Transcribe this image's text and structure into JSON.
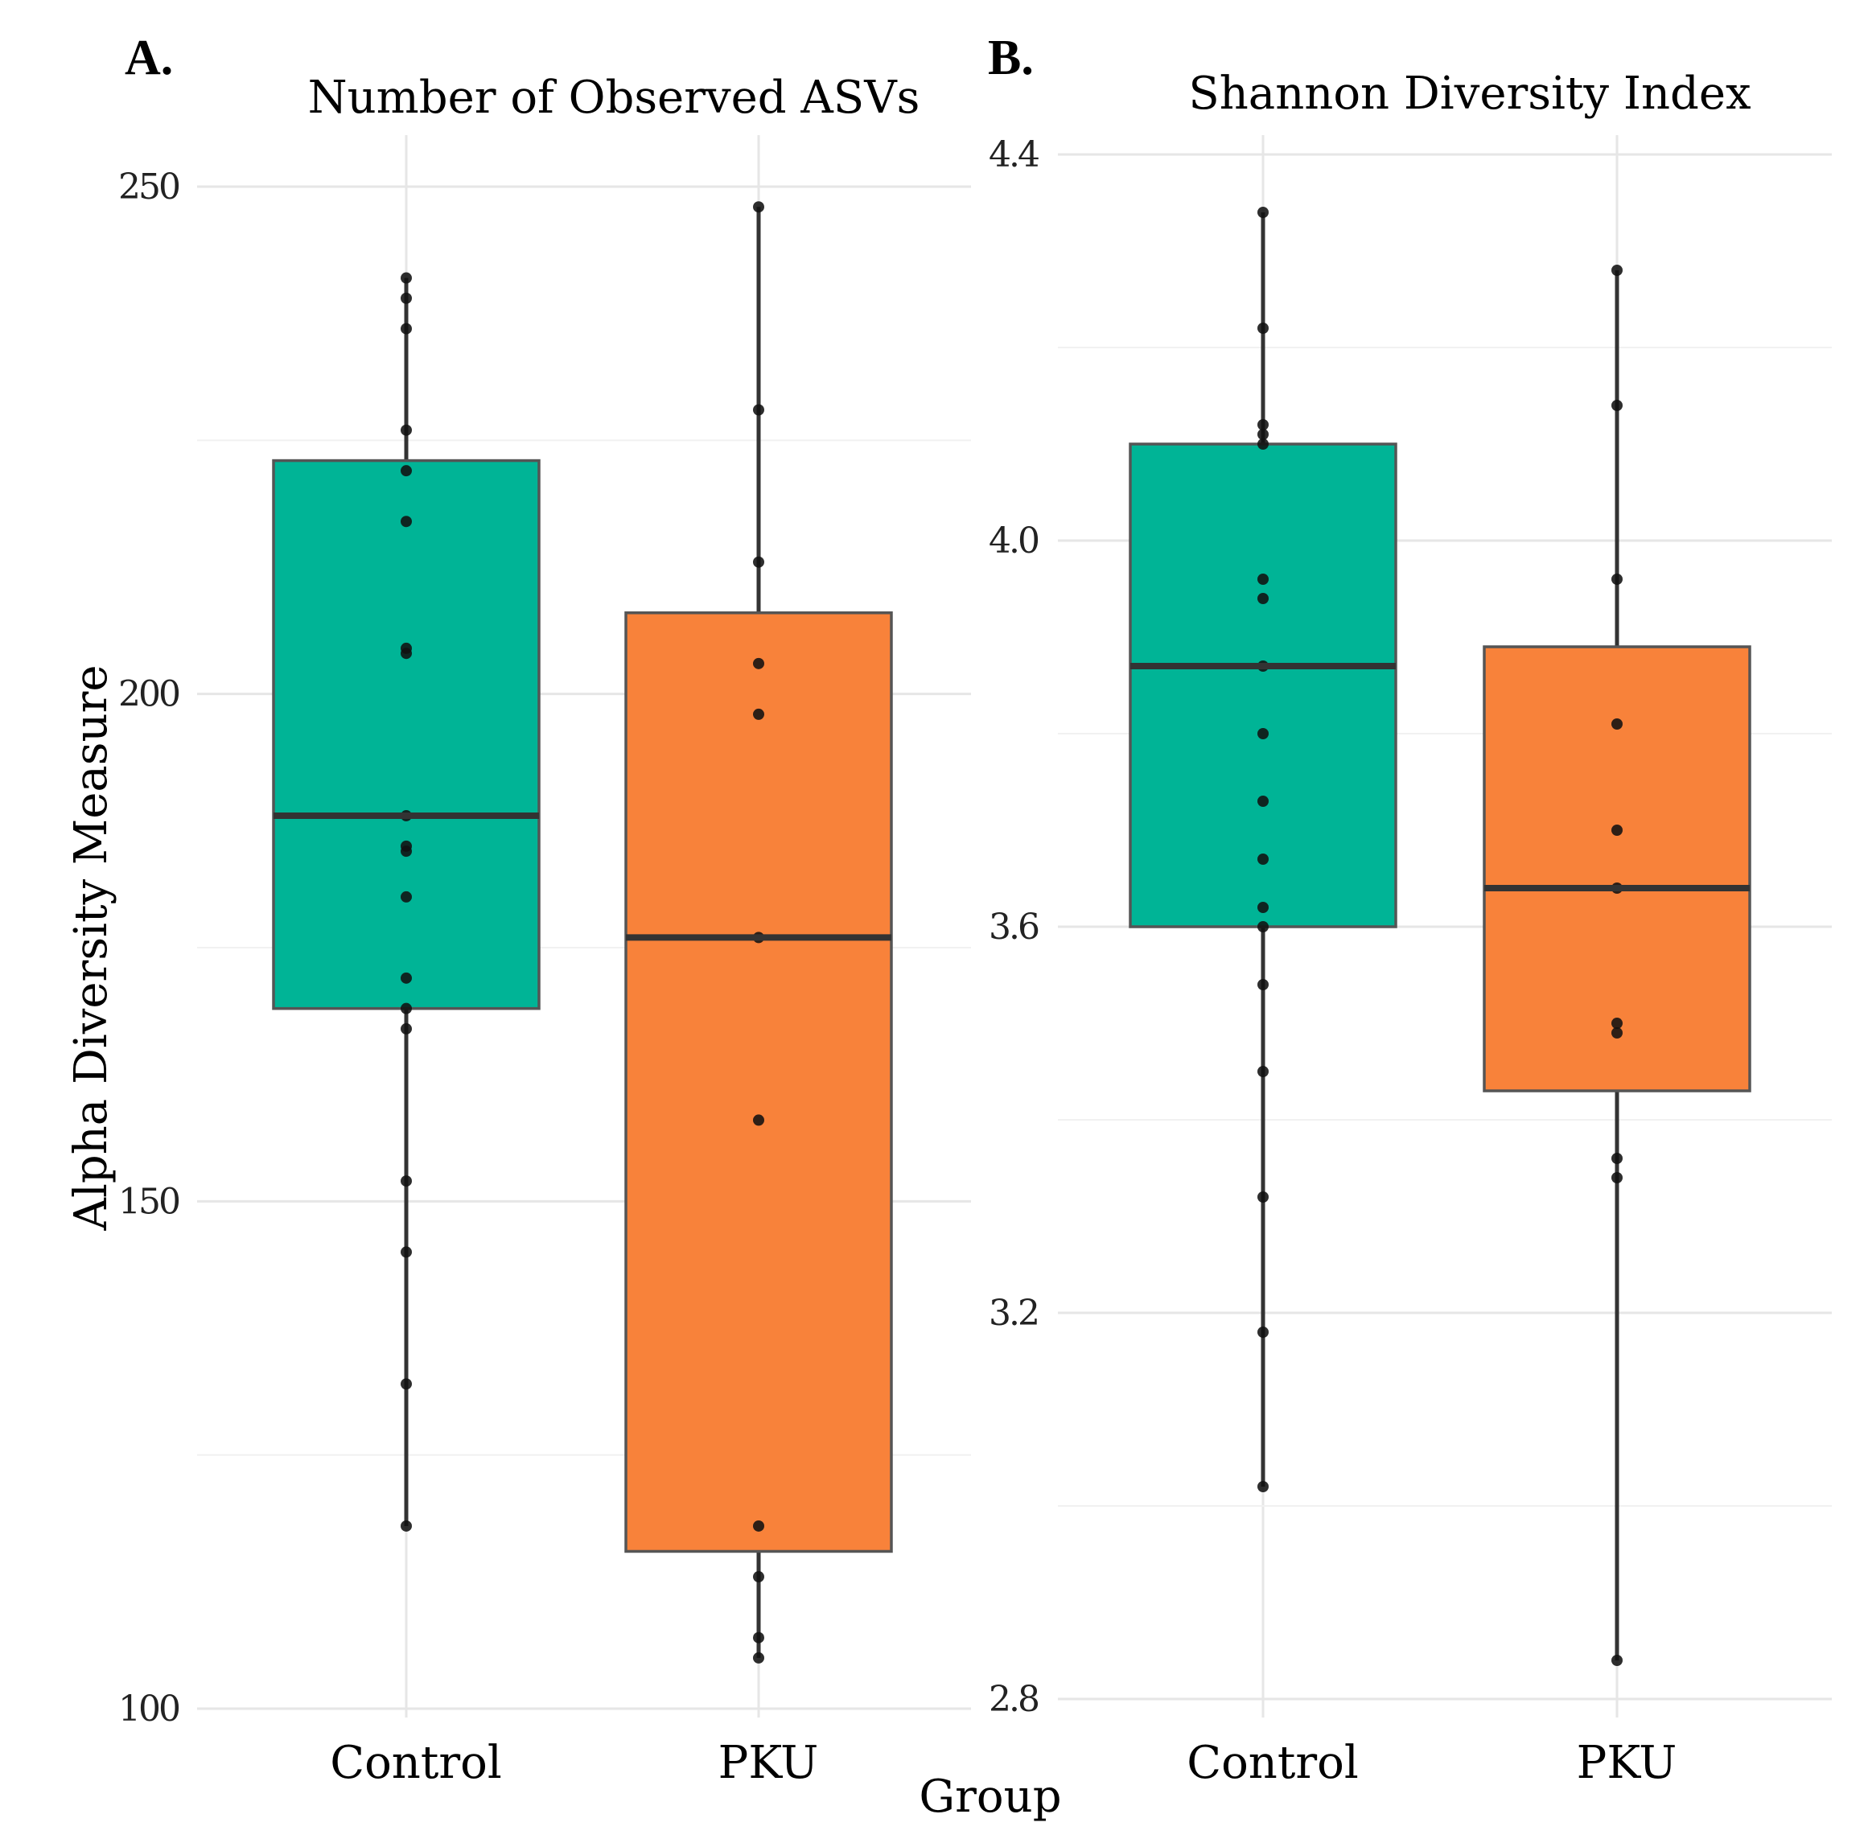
{
  "chart_data": [
    {
      "type": "box",
      "panel_label": "A.",
      "title": "Number of Observed ASVs",
      "ylabel": "Alpha Diversity Measure",
      "ylim": [
        100,
        252
      ],
      "yticks": [
        100,
        150,
        200,
        250
      ],
      "categories": [
        "Control",
        "PKU"
      ],
      "grid": true,
      "boxes": [
        {
          "group": "Control",
          "color": "#00B496",
          "whisker_low": 118,
          "q1": 169,
          "median": 188,
          "q3": 223,
          "whisker_high": 241
        },
        {
          "group": "PKU",
          "color": "#F8823A",
          "whisker_low": 105,
          "q1": 115.5,
          "median": 176,
          "q3": 208,
          "whisker_high": 248
        }
      ],
      "points": [
        {
          "group": "Control",
          "values": [
            241,
            239,
            236,
            226,
            222,
            217,
            204.5,
            204,
            188,
            185,
            184.5,
            180,
            172,
            169,
            167,
            152,
            145,
            132,
            118
          ]
        },
        {
          "group": "PKU",
          "values": [
            248,
            228,
            213,
            203,
            198,
            176,
            158,
            118,
            113,
            107,
            105
          ]
        }
      ]
    },
    {
      "type": "box",
      "panel_label": "B.",
      "title": "Shannon Diversity Index",
      "ylim": [
        2.8,
        4.4
      ],
      "yticks": [
        2.8,
        3.2,
        3.6,
        4.0,
        4.4
      ],
      "ytick_labels": [
        "2.8",
        "3.2",
        "3.6",
        "4.0",
        "4.4"
      ],
      "categories": [
        "Control",
        "PKU"
      ],
      "grid": true,
      "boxes": [
        {
          "group": "Control",
          "color": "#00B496",
          "whisker_low": 3.02,
          "q1": 3.6,
          "median": 3.87,
          "q3": 4.1,
          "whisker_high": 4.34
        },
        {
          "group": "PKU",
          "color": "#F8823A",
          "whisker_low": 2.84,
          "q1": 3.43,
          "median": 3.64,
          "q3": 3.89,
          "whisker_high": 4.28
        }
      ],
      "points": [
        {
          "group": "Control",
          "values": [
            4.34,
            4.22,
            4.12,
            4.11,
            4.1,
            3.96,
            3.94,
            3.87,
            3.8,
            3.73,
            3.67,
            3.62,
            3.6,
            3.54,
            3.45,
            3.32,
            3.18,
            3.02
          ]
        },
        {
          "group": "PKU",
          "values": [
            4.28,
            4.14,
            3.96,
            3.81,
            3.7,
            3.64,
            3.5,
            3.49,
            3.36,
            3.34,
            2.84
          ]
        }
      ]
    }
  ],
  "shared": {
    "xlabel": "Group"
  }
}
